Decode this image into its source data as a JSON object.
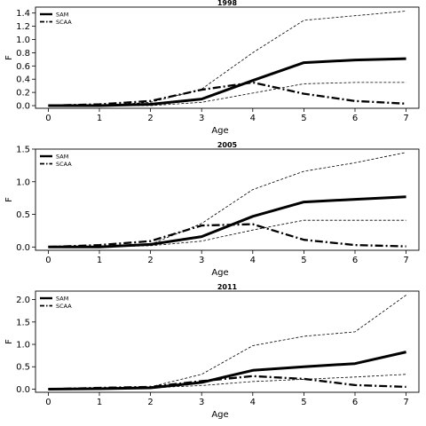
{
  "chart_data": [
    {
      "type": "line",
      "title": "1998",
      "xlabel": "Age",
      "ylabel": "F",
      "x": [
        0,
        1,
        2,
        3,
        4,
        5,
        6,
        7
      ],
      "xticks": [
        0,
        1,
        2,
        3,
        4,
        5,
        6,
        7
      ],
      "yticks": [
        0.0,
        0.2,
        0.4,
        0.6,
        0.8,
        1.0,
        1.2,
        1.4
      ],
      "ytick_labels": [
        "0.0",
        "0.2",
        "0.4",
        "0.6",
        "0.8",
        "1.0",
        "1.2",
        "1.4"
      ],
      "xlim": [
        -0.25,
        7.25
      ],
      "ylim": [
        -0.04,
        1.49
      ],
      "legend": "top-left",
      "series": [
        {
          "name": "SAM",
          "style": "solid-thick",
          "in_legend": true,
          "values": [
            0.0,
            0.0,
            0.02,
            0.1,
            0.38,
            0.65,
            0.69,
            0.71
          ]
        },
        {
          "name": "SCAA",
          "style": "dashdot-thick",
          "in_legend": true,
          "values": [
            0.0,
            0.02,
            0.07,
            0.24,
            0.35,
            0.18,
            0.07,
            0.03
          ]
        },
        {
          "style": "dashed-thin",
          "in_legend": false,
          "values": [
            0.0,
            0.0,
            0.05,
            0.25,
            0.8,
            1.29,
            1.36,
            1.43
          ]
        },
        {
          "style": "dashed-thin",
          "in_legend": false,
          "values": [
            0.0,
            0.0,
            0.0,
            0.05,
            0.19,
            0.33,
            0.35,
            0.35
          ]
        }
      ]
    },
    {
      "type": "line",
      "title": "2005",
      "xlabel": "Age",
      "ylabel": "F",
      "x": [
        0,
        1,
        2,
        3,
        4,
        5,
        6,
        7
      ],
      "xticks": [
        0,
        1,
        2,
        3,
        4,
        5,
        6,
        7
      ],
      "yticks": [
        0.0,
        0.5,
        1.0,
        1.5
      ],
      "ytick_labels": [
        "0.0",
        "0.5",
        "1.0",
        "1.5"
      ],
      "xlim": [
        -0.25,
        7.25
      ],
      "ylim": [
        -0.05,
        1.5
      ],
      "legend": "top-left",
      "series": [
        {
          "name": "SAM",
          "style": "solid-thick",
          "in_legend": true,
          "values": [
            0.0,
            0.0,
            0.04,
            0.16,
            0.47,
            0.69,
            0.73,
            0.77
          ]
        },
        {
          "name": "SCAA",
          "style": "dashdot-thick",
          "in_legend": true,
          "values": [
            0.0,
            0.03,
            0.09,
            0.33,
            0.35,
            0.11,
            0.03,
            0.01
          ]
        },
        {
          "style": "dashed-thin",
          "in_legend": false,
          "values": [
            0.0,
            0.0,
            0.04,
            0.36,
            0.88,
            1.16,
            1.29,
            1.45
          ]
        },
        {
          "style": "dashed-thin",
          "in_legend": false,
          "values": [
            0.0,
            0.0,
            0.02,
            0.09,
            0.26,
            0.41,
            0.41,
            0.41
          ]
        }
      ]
    },
    {
      "type": "line",
      "title": "2011",
      "xlabel": "Age",
      "ylabel": "F",
      "x": [
        0,
        1,
        2,
        3,
        4,
        5,
        6,
        7
      ],
      "xticks": [
        0,
        1,
        2,
        3,
        4,
        5,
        6,
        7
      ],
      "yticks": [
        0.0,
        0.5,
        1.0,
        1.5,
        2.0
      ],
      "ytick_labels": [
        "0.0",
        "0.5",
        "1.0",
        "1.5",
        "2.0"
      ],
      "xlim": [
        -0.25,
        7.25
      ],
      "ylim": [
        -0.07,
        2.19
      ],
      "legend": "top-left",
      "series": [
        {
          "name": "SAM",
          "style": "solid-thick",
          "in_legend": true,
          "values": [
            0.0,
            0.01,
            0.03,
            0.15,
            0.42,
            0.5,
            0.57,
            0.83
          ]
        },
        {
          "name": "SCAA",
          "style": "dashdot-thick",
          "in_legend": true,
          "values": [
            0.0,
            0.03,
            0.05,
            0.18,
            0.29,
            0.23,
            0.09,
            0.05
          ]
        },
        {
          "style": "dashed-thin",
          "in_legend": false,
          "values": [
            0.0,
            0.03,
            0.05,
            0.33,
            0.97,
            1.18,
            1.28,
            2.1
          ]
        },
        {
          "style": "dashed-thin",
          "in_legend": false,
          "values": [
            0.0,
            0.0,
            0.03,
            0.08,
            0.17,
            0.22,
            0.27,
            0.33
          ]
        }
      ]
    }
  ]
}
